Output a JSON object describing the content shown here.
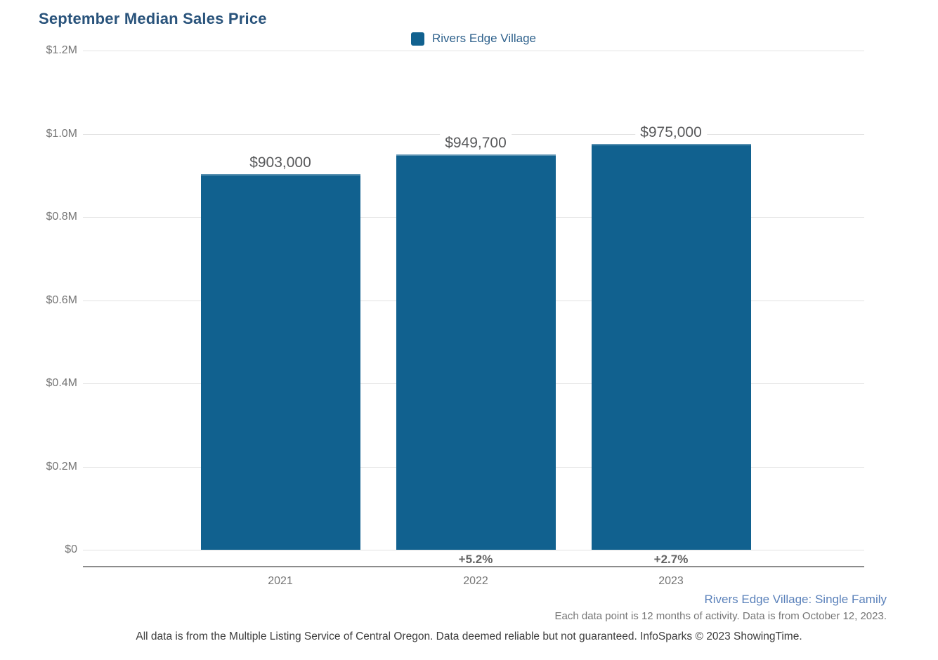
{
  "title": "September Median Sales Price",
  "legend": {
    "label": "Rivers Edge Village",
    "swatch_color": "#11618f"
  },
  "colors": {
    "bar": "#11618f",
    "title": "#29537b",
    "footer_link": "#5a81ba",
    "gridline": "#e2e2e2",
    "axis_line": "#8c8c8c"
  },
  "chart_data": {
    "type": "bar",
    "title": "September Median Sales Price",
    "series_name": "Rivers Edge Village",
    "categories": [
      "2021",
      "2022",
      "2023"
    ],
    "values": [
      903000,
      949700,
      975000
    ],
    "value_labels": [
      "$903,000",
      "$949,700",
      "$975,000"
    ],
    "change_labels": [
      "",
      "+5.2%",
      "+2.7%"
    ],
    "y_ticks": [
      {
        "value": 1200000,
        "label": "$1.2M"
      },
      {
        "value": 1000000,
        "label": "$1.0M"
      },
      {
        "value": 800000,
        "label": "$0.8M"
      },
      {
        "value": 600000,
        "label": "$0.6M"
      },
      {
        "value": 400000,
        "label": "$0.4M"
      },
      {
        "value": 200000,
        "label": "$0.2M"
      },
      {
        "value": 0,
        "label": "$0"
      }
    ],
    "ylim": [
      0,
      1200000
    ],
    "grid": true,
    "legend_position": "top-center",
    "bar_color": "#11618f"
  },
  "footer": {
    "segment_label": "Rivers Edge Village: Single Family",
    "data_note": "Each data point is 12 months of activity. Data is from October 12, 2023.",
    "disclaimer": "All data is from the Multiple Listing Service of Central Oregon. Data deemed reliable but not guaranteed. InfoSparks © 2023 ShowingTime."
  }
}
